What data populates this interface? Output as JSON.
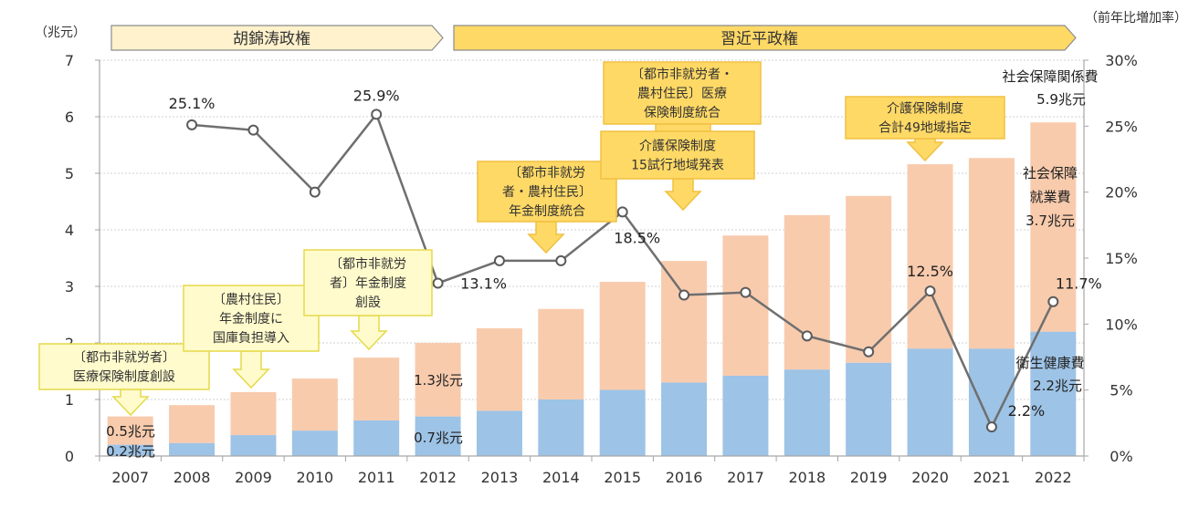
{
  "chart_data": {
    "type": "bar",
    "stacked": true,
    "secondary_type": "line",
    "title": "",
    "categories": [
      "2007",
      "2008",
      "2009",
      "2010",
      "2011",
      "2012",
      "2013",
      "2014",
      "2015",
      "2016",
      "2017",
      "2018",
      "2019",
      "2020",
      "2021",
      "2022"
    ],
    "series": [
      {
        "name": "衛生健康費",
        "axis": "left",
        "color": "#9dc3e6",
        "values": [
          0.2,
          0.23,
          0.37,
          0.45,
          0.63,
          0.7,
          0.8,
          1.0,
          1.17,
          1.3,
          1.42,
          1.53,
          1.65,
          1.9,
          1.9,
          2.2
        ]
      },
      {
        "name": "社会保障就業費",
        "axis": "left",
        "color": "#f8cbad",
        "values": [
          0.5,
          0.67,
          0.76,
          0.92,
          1.11,
          1.3,
          1.46,
          1.6,
          1.91,
          2.15,
          2.48,
          2.73,
          2.95,
          3.26,
          3.37,
          3.7
        ]
      },
      {
        "name": "前年比増加率",
        "axis": "right",
        "type": "line",
        "color": "#6f6f6f",
        "values": [
          null,
          25.1,
          24.7,
          20.0,
          25.9,
          13.1,
          14.8,
          14.8,
          18.5,
          12.2,
          12.4,
          9.1,
          7.9,
          12.5,
          2.2,
          11.7
        ]
      }
    ],
    "left_axis": {
      "label": "（兆元）",
      "ylim": [
        0,
        7
      ],
      "ticks": [
        "0",
        "1",
        "2",
        "3",
        "4",
        "5",
        "6",
        "7"
      ]
    },
    "right_axis": {
      "label": "（前年比増加率）",
      "ylim": [
        0,
        30
      ],
      "ticks": [
        "0%",
        "5%",
        "10%",
        "15%",
        "20%",
        "25%",
        "30%"
      ]
    },
    "grid": true,
    "line_labels": [
      {
        "index": 1,
        "text": "25.1%"
      },
      {
        "index": 4,
        "text": "25.9%"
      },
      {
        "index": 5,
        "text": "13.1%"
      },
      {
        "index": 8,
        "text": "18.5%"
      },
      {
        "index": 13,
        "text": "12.5%"
      },
      {
        "index": 14,
        "text": "2.2%"
      },
      {
        "index": 15,
        "text": "11.7%"
      }
    ],
    "bar_labels": [
      {
        "index": 0,
        "text": "0.5兆元"
      },
      {
        "index": 0,
        "text": "0.2兆元"
      },
      {
        "index": 5,
        "text": "1.3兆元"
      },
      {
        "index": 5,
        "text": "0.7兆元"
      }
    ],
    "side_annotations": {
      "total": [
        "社会保障関係費",
        "5.9兆元"
      ],
      "social": [
        "社会保障",
        "就業費",
        "3.7兆元"
      ],
      "health": [
        "衛生健康費",
        "2.2兆元"
      ]
    },
    "eras": [
      {
        "name": "胡錦涛政権",
        "from": "2007",
        "to": "2012",
        "color": "#fff2cc"
      },
      {
        "name": "習近平政権",
        "from": "2012",
        "to": "2022",
        "color": "#ffd966"
      }
    ],
    "callouts": [
      {
        "target": "2007",
        "lines": [
          "〔都市非就労者〕",
          "医療保険制度創設"
        ]
      },
      {
        "target": "2009",
        "lines": [
          "〔農村住民〕",
          "年金制度に",
          "国庫負担導入"
        ]
      },
      {
        "target": "2011",
        "lines": [
          "〔都市非就労",
          "者〕年金制度",
          "創設"
        ]
      },
      {
        "target": "2014",
        "lines": [
          "〔都市非就労",
          "者・農村住民〕",
          "年金制度統合"
        ]
      },
      {
        "target": "2016",
        "lines": [
          "〔都市非就労者・",
          "農村住民〕医療",
          "保険制度統合"
        ]
      },
      {
        "target": "2016",
        "lines": [
          "介護保険制度",
          "15試行地域発表"
        ]
      },
      {
        "target": "2020",
        "lines": [
          "介護保険制度",
          "合計49地域指定"
        ]
      }
    ]
  }
}
